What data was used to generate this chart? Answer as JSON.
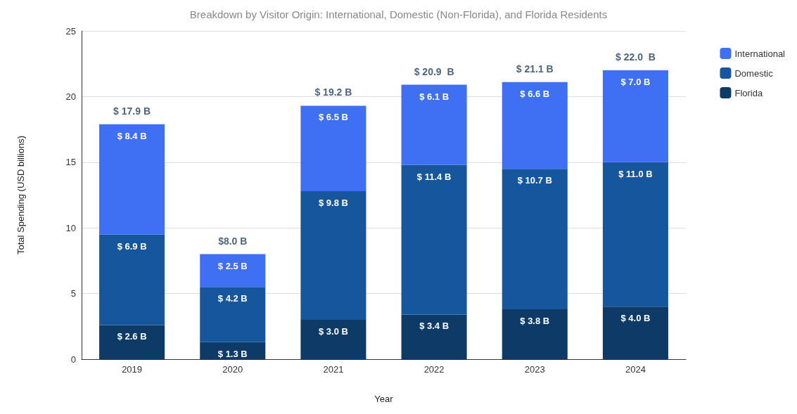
{
  "chart_data": {
    "type": "bar",
    "subtitle": "Breakdown by Visitor Origin: International, Domestic (Non-Florida), and Florida Residents",
    "xlabel": "Year",
    "ylabel": "Total Spending (USD billions)",
    "categories": [
      "2019",
      "2020",
      "2021",
      "2022",
      "2023",
      "2024"
    ],
    "stacked": true,
    "series": [
      {
        "name": "Florida",
        "color": "#0d3a66",
        "values": [
          2.6,
          1.3,
          3.0,
          3.4,
          3.8,
          4.0
        ],
        "value_labels": [
          "$ 2.6 B",
          "$ 1.3 B",
          "$ 3.0 B",
          "$ 3.4 B",
          "$ 3.8 B",
          "$ 4.0 B"
        ]
      },
      {
        "name": "Domestic",
        "color": "#15569c",
        "values": [
          6.9,
          4.2,
          9.8,
          11.4,
          10.7,
          11.0
        ],
        "value_labels": [
          "$ 6.9 B",
          "$ 4.2 B",
          "$ 9.8 B",
          "$ 11.4 B",
          "$ 10.7 B",
          "$ 11.0 B"
        ]
      },
      {
        "name": "International",
        "color": "#3f6ff2",
        "values": [
          8.4,
          2.5,
          6.5,
          6.1,
          6.6,
          7.0
        ],
        "value_labels": [
          "$ 8.4 B",
          "$ 2.5 B",
          "$ 6.5 B",
          "$ 6.1 B",
          "$ 6.6 B",
          "$ 7.0 B"
        ]
      }
    ],
    "totals": [
      "$ 17.9 B",
      "$8.0 B",
      "$ 19.2 B",
      "$ 20.9  B",
      "$ 21.1 B",
      "$ 22.0  B"
    ],
    "ylim": [
      0,
      25
    ],
    "yticks": [
      0,
      5,
      10,
      15,
      20,
      25
    ],
    "grid": "y",
    "legend": "top right"
  }
}
